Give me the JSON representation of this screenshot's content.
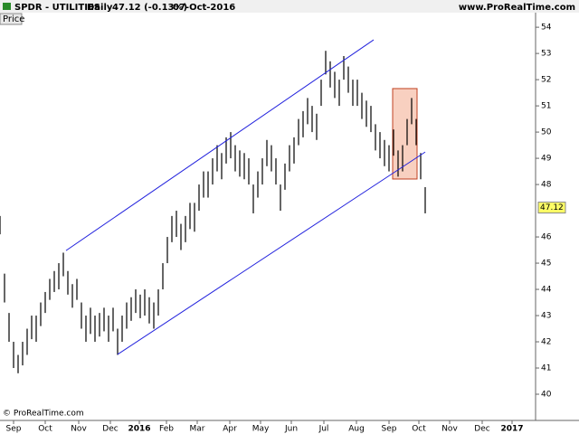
{
  "header": {
    "symbol": "SPDR - UTILITIES",
    "period": "Daily",
    "quote": "47.12 (-0.13%)",
    "date": "07-Oct-2016",
    "site": "www.ProRealTime.com"
  },
  "panel_label": "Price",
  "copyright": "© ProRealTime.com",
  "chart_data": {
    "type": "ohlc",
    "xlim": [
      0,
      592
    ],
    "ylim": [
      39,
      54.28
    ],
    "yticks": [
      40,
      41,
      42,
      43,
      44,
      45,
      46,
      48,
      49,
      50,
      51,
      52,
      53,
      54
    ],
    "xticks": [
      {
        "value": 15,
        "label": "Sep"
      },
      {
        "value": 50,
        "label": "Oct"
      },
      {
        "value": 87,
        "label": "Nov"
      },
      {
        "value": 122,
        "label": "Dec"
      },
      {
        "value": 154,
        "label": "2016"
      },
      {
        "value": 184,
        "label": "Feb"
      },
      {
        "value": 218,
        "label": "Mar"
      },
      {
        "value": 254,
        "label": "Apr"
      },
      {
        "value": 288,
        "label": "May"
      },
      {
        "value": 322,
        "label": "Jun"
      },
      {
        "value": 358,
        "label": "Jul"
      },
      {
        "value": 394,
        "label": "Aug"
      },
      {
        "value": 430,
        "label": "Sep"
      },
      {
        "value": 463,
        "label": "Oct"
      },
      {
        "value": 497,
        "label": "Nov"
      },
      {
        "value": 533,
        "label": "Dec"
      },
      {
        "value": 566,
        "label": "2017"
      }
    ],
    "color": "#000000",
    "bars": [
      [
        0,
        46.8,
        46.1
      ],
      [
        5,
        44.6,
        43.5
      ],
      [
        10,
        43.1,
        42.0
      ],
      [
        15,
        42.0,
        41.0
      ],
      [
        20,
        41.5,
        40.8
      ],
      [
        25,
        42.0,
        41.1
      ],
      [
        30,
        42.5,
        41.5
      ],
      [
        35,
        43.0,
        42.1
      ],
      [
        40,
        43.0,
        42.0
      ],
      [
        45,
        43.5,
        42.6
      ],
      [
        50,
        43.9,
        43.1
      ],
      [
        55,
        44.4,
        43.6
      ],
      [
        60,
        44.7,
        43.9
      ],
      [
        65,
        45.0,
        44.0
      ],
      [
        70,
        45.4,
        44.5
      ],
      [
        75,
        44.7,
        43.8
      ],
      [
        80,
        44.2,
        43.3
      ],
      [
        85,
        44.4,
        43.6
      ],
      [
        90,
        43.5,
        42.5
      ],
      [
        95,
        43.0,
        42.0
      ],
      [
        100,
        43.3,
        42.3
      ],
      [
        105,
        43.0,
        42.0
      ],
      [
        110,
        43.1,
        42.2
      ],
      [
        115,
        43.3,
        42.4
      ],
      [
        120,
        43.0,
        42.0
      ],
      [
        125,
        43.3,
        42.4
      ],
      [
        130,
        42.5,
        41.5
      ],
      [
        135,
        43.0,
        42.0
      ],
      [
        140,
        43.5,
        42.5
      ],
      [
        145,
        43.7,
        42.8
      ],
      [
        150,
        44.0,
        43.1
      ],
      [
        155,
        43.8,
        42.9
      ],
      [
        160,
        44.0,
        43.0
      ],
      [
        165,
        43.7,
        42.7
      ],
      [
        170,
        43.5,
        42.5
      ],
      [
        175,
        44.0,
        43.0
      ],
      [
        180,
        45.0,
        44.0
      ],
      [
        185,
        46.0,
        45.0
      ],
      [
        190,
        46.8,
        45.8
      ],
      [
        195,
        47.0,
        46.0
      ],
      [
        200,
        46.5,
        45.5
      ],
      [
        205,
        46.8,
        45.8
      ],
      [
        210,
        47.3,
        46.3
      ],
      [
        215,
        47.3,
        46.2
      ],
      [
        220,
        48.0,
        47.0
      ],
      [
        225,
        48.5,
        47.5
      ],
      [
        230,
        48.5,
        47.5
      ],
      [
        235,
        49.0,
        48.0
      ],
      [
        240,
        49.5,
        48.5
      ],
      [
        245,
        49.2,
        48.2
      ],
      [
        250,
        49.8,
        48.8
      ],
      [
        255,
        50.0,
        49.0
      ],
      [
        260,
        49.5,
        48.5
      ],
      [
        265,
        49.3,
        48.3
      ],
      [
        270,
        49.2,
        48.2
      ],
      [
        275,
        49.0,
        48.0
      ],
      [
        280,
        48.0,
        46.9
      ],
      [
        285,
        48.5,
        47.5
      ],
      [
        290,
        49.0,
        48.0
      ],
      [
        295,
        49.7,
        48.7
      ],
      [
        300,
        49.5,
        48.5
      ],
      [
        305,
        49.0,
        48.0
      ],
      [
        310,
        48.0,
        47.0
      ],
      [
        315,
        48.8,
        47.8
      ],
      [
        320,
        49.5,
        48.5
      ],
      [
        325,
        49.8,
        48.8
      ],
      [
        330,
        50.5,
        49.5
      ],
      [
        335,
        50.8,
        49.8
      ],
      [
        340,
        51.3,
        50.3
      ],
      [
        345,
        51.0,
        50.0
      ],
      [
        350,
        50.7,
        49.7
      ],
      [
        355,
        52.0,
        51.0
      ],
      [
        360,
        53.1,
        52.2
      ],
      [
        365,
        52.7,
        51.7
      ],
      [
        370,
        52.3,
        51.3
      ],
      [
        375,
        52.0,
        51.0
      ],
      [
        380,
        52.9,
        52.0
      ],
      [
        385,
        52.5,
        51.5
      ],
      [
        390,
        52.0,
        51.0
      ],
      [
        395,
        52.0,
        51.0
      ],
      [
        400,
        51.5,
        50.5
      ],
      [
        405,
        51.2,
        50.2
      ],
      [
        410,
        51.0,
        50.0
      ],
      [
        415,
        50.3,
        49.3
      ],
      [
        420,
        50.0,
        49.0
      ],
      [
        425,
        49.7,
        48.7
      ],
      [
        430,
        49.5,
        48.5
      ],
      [
        435,
        50.1,
        49.1
      ],
      [
        440,
        49.3,
        48.3
      ],
      [
        445,
        49.5,
        48.5
      ],
      [
        450,
        50.5,
        49.5
      ],
      [
        455,
        51.3,
        50.3
      ],
      [
        460,
        50.5,
        49.5
      ],
      [
        465,
        49.2,
        48.2
      ],
      [
        470,
        47.9,
        46.9
      ]
    ],
    "channel": [
      {
        "x": [
          73,
          413
        ],
        "y": [
          45.48,
          53.52
        ],
        "color": "#2222dd"
      },
      {
        "x": [
          130,
          470
        ],
        "y": [
          41.52,
          49.24
        ],
        "color": "#2222dd"
      }
    ],
    "box": {
      "x": [
        434,
        461
      ],
      "y": [
        48.21,
        51.66
      ],
      "fill": "#f8d0c0",
      "stroke": "#c04020"
    },
    "last_price": 47.12
  }
}
